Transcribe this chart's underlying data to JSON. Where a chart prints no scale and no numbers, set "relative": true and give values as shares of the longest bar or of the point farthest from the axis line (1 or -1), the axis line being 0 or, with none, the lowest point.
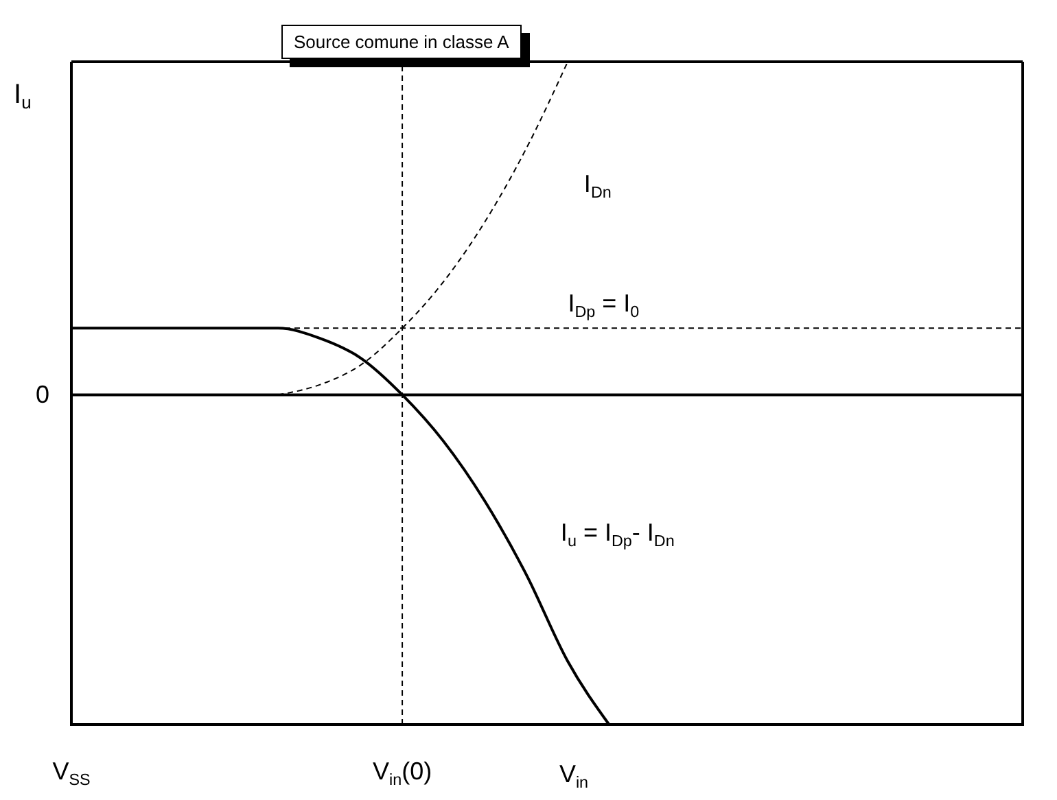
{
  "chart_data": {
    "type": "line",
    "title": "Source comune in classe A",
    "xlabel": "V$_{in}$",
    "ylabel": "I$_{u}$",
    "relative": true,
    "marker": "none",
    "categories": [
      "V$_{SS}$",
      null,
      null,
      null,
      null,
      null,
      null,
      null,
      "V$_{in}$(0)",
      null,
      null,
      null,
      null,
      null,
      null,
      null,
      null,
      null,
      null,
      null,
      null,
      null,
      null,
      null
    ],
    "series": [
      {
        "name": "I$_{Dn}$",
        "color": "#000000",
        "line_style": "dashed",
        "values": [
          null,
          null,
          null,
          null,
          null,
          0.0,
          0.03,
          0.09,
          0.2,
          0.34,
          0.52,
          0.74,
          1.0,
          null,
          null,
          null,
          null,
          null,
          null,
          null,
          null,
          null,
          null,
          null
        ]
      },
      {
        "name": "I$_{Dp}$ = I$_{0}$",
        "color": "#000000",
        "line_style": "dashed",
        "values": [
          null,
          null,
          null,
          null,
          0.2,
          0.2,
          0.2,
          0.2,
          0.2,
          0.2,
          0.2,
          0.2,
          0.2,
          0.2,
          0.2,
          0.2,
          0.2,
          0.2,
          0.2,
          0.2,
          0.2,
          0.2,
          0.2,
          0.2
        ]
      },
      {
        "name": "I$_{u}$ = I$_{Dp}$- I$_{Dn}$",
        "color": "#000000",
        "line_style": "solid",
        "values": [
          0.2,
          0.2,
          0.2,
          0.2,
          0.2,
          0.2,
          0.17,
          0.11,
          0,
          -0.14,
          -0.32,
          -0.54,
          -0.8,
          -0.99,
          null,
          null,
          null,
          null,
          null,
          null,
          null,
          null,
          null,
          null
        ]
      }
    ],
    "ref_lines": [
      {
        "axis": "y",
        "value": 0,
        "label": "0",
        "line_style": "solid",
        "color": "#000000"
      },
      {
        "axis": "x",
        "value": "V$_{in}$(0)",
        "label": null,
        "line_style": "dashed",
        "color": "#000000"
      }
    ]
  }
}
